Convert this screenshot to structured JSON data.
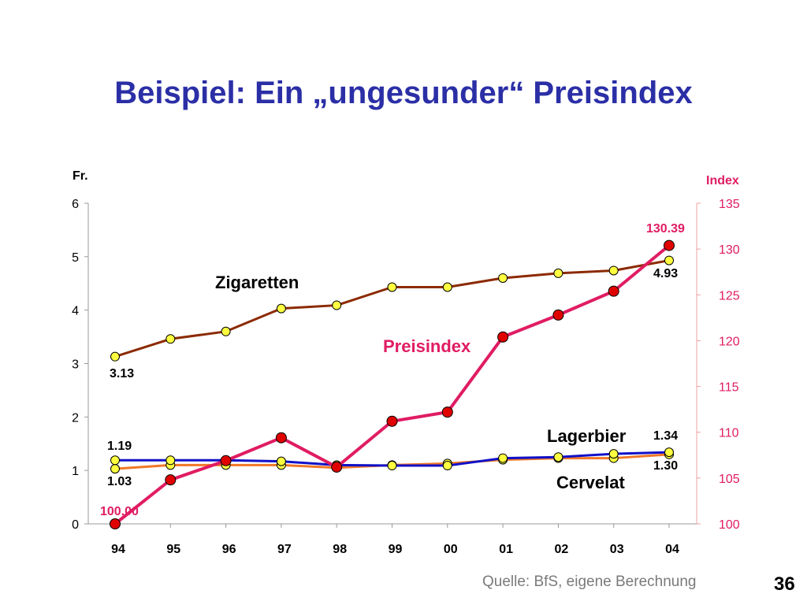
{
  "slide": {
    "title": "Beispiel: Ein „ungesunder“ Preisindex",
    "source": "Quelle: BfS, eigene Berechnung",
    "page_number": "36"
  },
  "chart_data": {
    "type": "line",
    "categories": [
      "94",
      "95",
      "96",
      "97",
      "98",
      "99",
      "00",
      "01",
      "02",
      "03",
      "04"
    ],
    "left_axis": {
      "unit_label": "Fr.",
      "range": [
        0,
        6
      ],
      "ticks": [
        "0",
        "1",
        "2",
        "3",
        "4",
        "5",
        "6"
      ]
    },
    "right_axis": {
      "unit_label": "Index",
      "range": [
        100,
        135
      ],
      "ticks": [
        "100",
        "105",
        "110",
        "115",
        "120",
        "125",
        "130",
        "135"
      ],
      "color": "#e01c62"
    },
    "series": [
      {
        "name": "Zigaretten",
        "axis": "left",
        "color": "#8b2a00",
        "values": [
          3.13,
          3.46,
          3.6,
          4.03,
          4.09,
          4.43,
          4.43,
          4.6,
          4.69,
          4.74,
          4.93
        ],
        "start_label": "3.13",
        "end_label": "4.93"
      },
      {
        "name": "Lagerbier",
        "axis": "left",
        "color": "#1010c8",
        "values": [
          1.19,
          1.19,
          1.19,
          1.17,
          1.1,
          1.09,
          1.09,
          1.23,
          1.25,
          1.31,
          1.34
        ],
        "start_label": "1.19",
        "end_label": "1.34"
      },
      {
        "name": "Cervelat",
        "axis": "left",
        "color": "#f07828",
        "values": [
          1.03,
          1.1,
          1.1,
          1.1,
          1.05,
          1.1,
          1.13,
          1.2,
          1.23,
          1.23,
          1.3
        ],
        "start_label": "1.03",
        "end_label": "1.30"
      },
      {
        "name": "Preisindex",
        "axis": "right",
        "color": "#e01c62",
        "values": [
          100.0,
          104.8,
          106.9,
          109.4,
          106.2,
          111.2,
          112.2,
          120.4,
          122.8,
          125.4,
          130.39
        ],
        "start_label": "100.00",
        "end_label": "130.39"
      }
    ],
    "grid": false,
    "legend": "inline labels"
  }
}
